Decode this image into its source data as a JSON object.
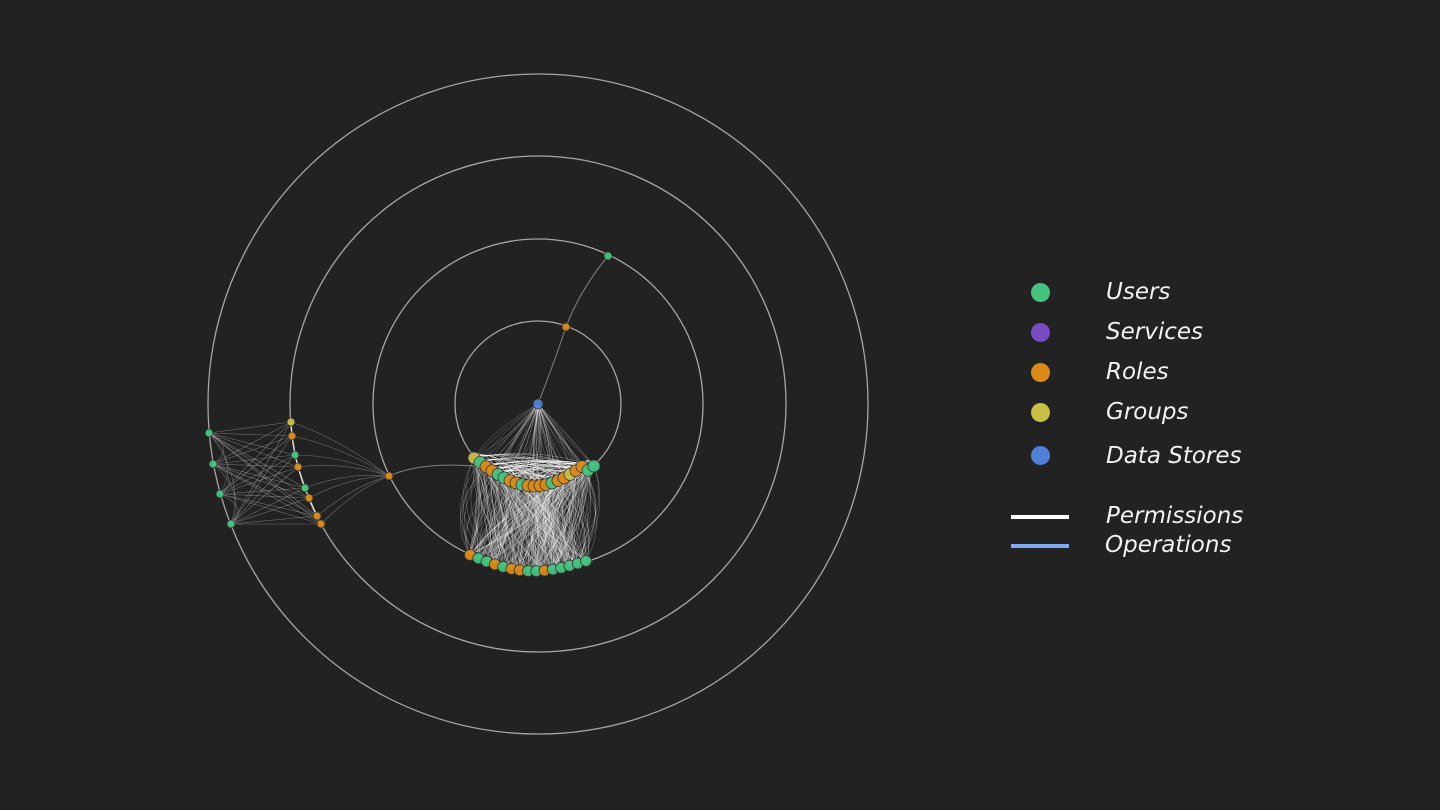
{
  "legend": {
    "nodes": [
      {
        "label": "Users",
        "color": "#45c47f"
      },
      {
        "label": "Services",
        "color": "#7a4cc4"
      },
      {
        "label": "Roles",
        "color": "#dc8a17"
      },
      {
        "label": "Groups",
        "color": "#c9c043"
      },
      {
        "label": "Data Stores",
        "color": "#4f7fd6"
      }
    ],
    "edges": [
      {
        "label": "Permissions",
        "color": "#ffffff"
      },
      {
        "label": "Operations",
        "color": "#7fa8f0"
      }
    ]
  },
  "background": "#222222",
  "ring_color": "#bdbdbd"
}
